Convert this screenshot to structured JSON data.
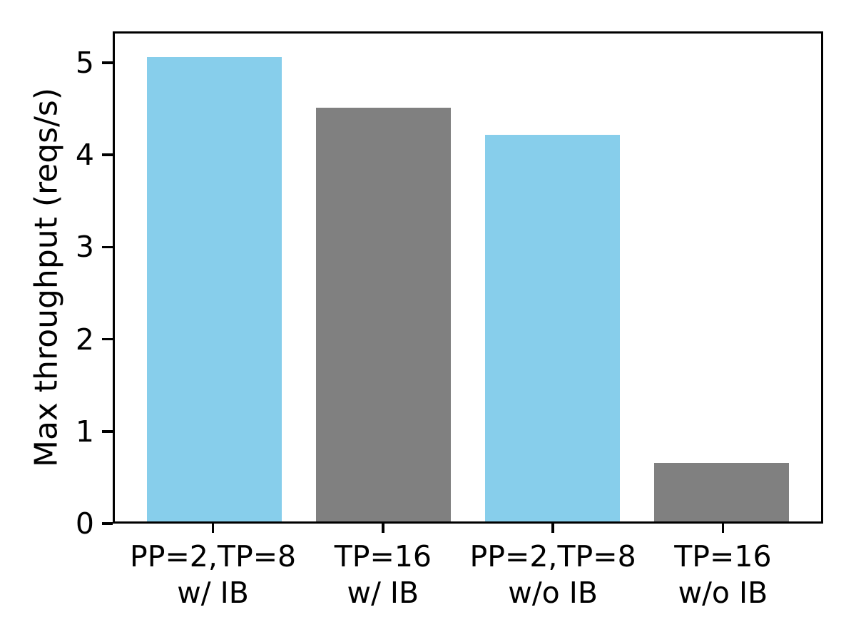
{
  "figure": {
    "background_color": "#ffffff",
    "axis_color": "#000000"
  },
  "chart_data": {
    "type": "bar",
    "ylabel": "Max throughput (reqs/s)",
    "categories": [
      [
        "PP=2,TP=8",
        "w/ IB"
      ],
      [
        "TP=16",
        "w/ IB"
      ],
      [
        "PP=2,TP=8",
        "w/o IB"
      ],
      [
        "TP=16",
        "w/o IB"
      ]
    ],
    "values": [
      5.08,
      4.53,
      4.23,
      0.64
    ],
    "bar_colors": [
      "#87CEEB",
      "#808080",
      "#87CEEB",
      "#808080"
    ],
    "yticks": [
      "0",
      "1",
      "2",
      "3",
      "4",
      "5"
    ],
    "ylim": [
      0,
      5.34
    ],
    "grid": false,
    "legend_position": "none",
    "bar_width_fraction": 0.8
  }
}
